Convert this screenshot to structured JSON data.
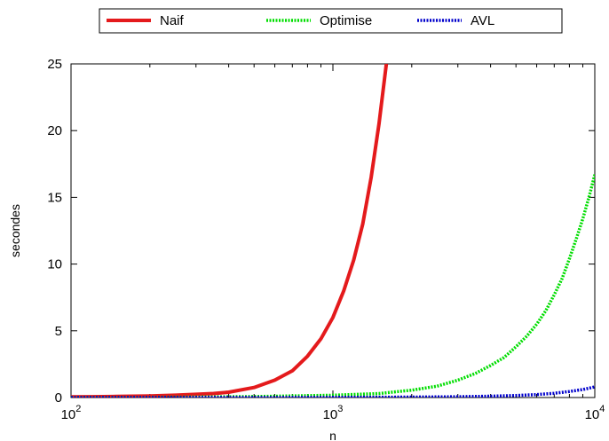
{
  "chart_data": {
    "type": "line",
    "xlabel": "n",
    "ylabel": "secondes",
    "xscale": "log",
    "xlim": [
      100,
      10000
    ],
    "ylim": [
      0,
      25
    ],
    "x_ticks": [
      {
        "value": 100,
        "base": "10",
        "exp": "2"
      },
      {
        "value": 1000,
        "base": "10",
        "exp": "3"
      },
      {
        "value": 10000,
        "base": "10",
        "exp": "4"
      }
    ],
    "y_ticks": [
      0,
      5,
      10,
      15,
      20,
      25
    ],
    "legend_position": "top-center",
    "grid": false,
    "series": [
      {
        "name": "Naif",
        "color": "#e41a1c",
        "style": "solid",
        "x": [
          100,
          120,
          150,
          200,
          250,
          300,
          350,
          400,
          500,
          600,
          700,
          800,
          900,
          1000,
          1100,
          1200,
          1300,
          1400,
          1500,
          1600
        ],
        "y": [
          0.05,
          0.06,
          0.08,
          0.12,
          0.17,
          0.24,
          0.3,
          0.4,
          0.75,
          1.3,
          2.0,
          3.1,
          4.4,
          6.0,
          8.0,
          10.3,
          13.0,
          16.5,
          20.5,
          25.0
        ]
      },
      {
        "name": "Optimise",
        "color": "#00dd00",
        "style": "dotted",
        "x": [
          100,
          200,
          500,
          1000,
          1500,
          2000,
          2500,
          3000,
          3500,
          4000,
          4500,
          5000,
          5500,
          6000,
          6500,
          7000,
          7500,
          8000,
          8500,
          9000,
          9500,
          10000
        ],
        "y": [
          0.01,
          0.02,
          0.07,
          0.17,
          0.3,
          0.55,
          0.85,
          1.3,
          1.8,
          2.4,
          3.0,
          3.8,
          4.6,
          5.5,
          6.5,
          7.7,
          8.9,
          10.4,
          11.9,
          13.4,
          15.0,
          16.7
        ]
      },
      {
        "name": "AVL",
        "color": "#0000cc",
        "style": "dotted",
        "x": [
          100,
          500,
          1000,
          2000,
          3000,
          4000,
          5000,
          6000,
          7000,
          8000,
          9000,
          10000
        ],
        "y": [
          0.0,
          0.0,
          0.01,
          0.03,
          0.06,
          0.1,
          0.15,
          0.22,
          0.32,
          0.45,
          0.6,
          0.8
        ]
      }
    ]
  }
}
